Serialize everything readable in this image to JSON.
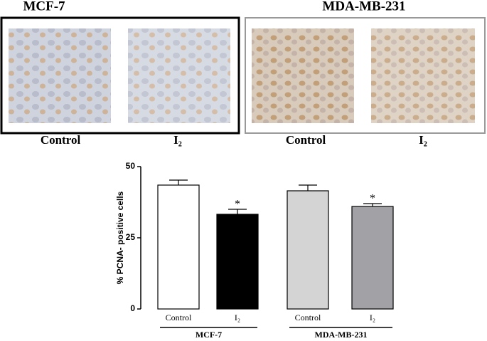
{
  "panels": [
    {
      "title": "MCF-7",
      "labels": [
        "Control",
        "I₂"
      ]
    },
    {
      "title": "MDA-MB-231",
      "labels": [
        "Control",
        "I₂"
      ]
    }
  ],
  "chart_data": {
    "type": "bar",
    "y_label": "% PCNA- positive cells",
    "categories": [
      "Control",
      "I₂",
      "Control",
      "I₂"
    ],
    "values": [
      43.5,
      33.25,
      41.5,
      36
    ],
    "errors": [
      1.75,
      1.75,
      2,
      1
    ],
    "colors": [
      "#ffffff",
      "#000000",
      "#d4d4d4",
      "#a2a2a6"
    ],
    "value_annotations": [
      null,
      "*",
      null,
      "*"
    ],
    "groups": [
      "MCF-7",
      "MDA-MB-231"
    ],
    "ylim": [
      0,
      50
    ],
    "yticks": [
      0,
      25,
      50
    ]
  }
}
